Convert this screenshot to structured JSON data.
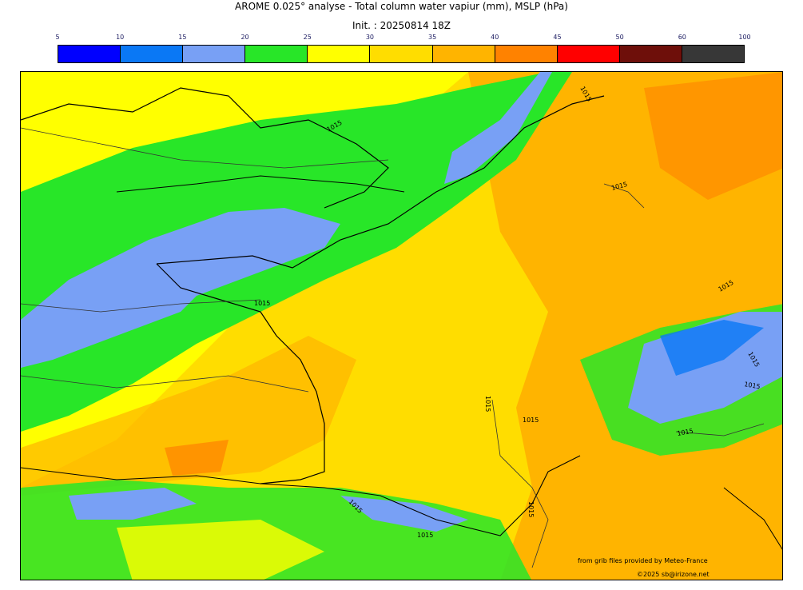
{
  "header": {
    "title": "AROME 0.025° analyse - Total column water vapiur (mm), MSLP (hPa)",
    "init": "Init. : 20250814 18Z"
  },
  "colorbar": {
    "ticks": [
      "5",
      "10",
      "15",
      "20",
      "25",
      "30",
      "35",
      "40",
      "45",
      "50",
      "60",
      "100"
    ],
    "colors": [
      "#0000ff",
      "#0a78f5",
      "#78a0f5",
      "#28e628",
      "#ffff00",
      "#ffdd00",
      "#ffb400",
      "#ff8200",
      "#ff0000",
      "#6e0f0a",
      "#373737"
    ]
  },
  "map": {
    "isobar_labels": [
      "1015",
      "1015",
      "1015",
      "1015",
      "1015",
      "1015",
      "1015",
      "1015",
      "1015",
      "1015",
      "1015",
      "1015",
      "1015"
    ]
  },
  "footer": {
    "source": "from grib files provided by Meteo-France",
    "copyright": "©2025 sb@irizone.net"
  }
}
